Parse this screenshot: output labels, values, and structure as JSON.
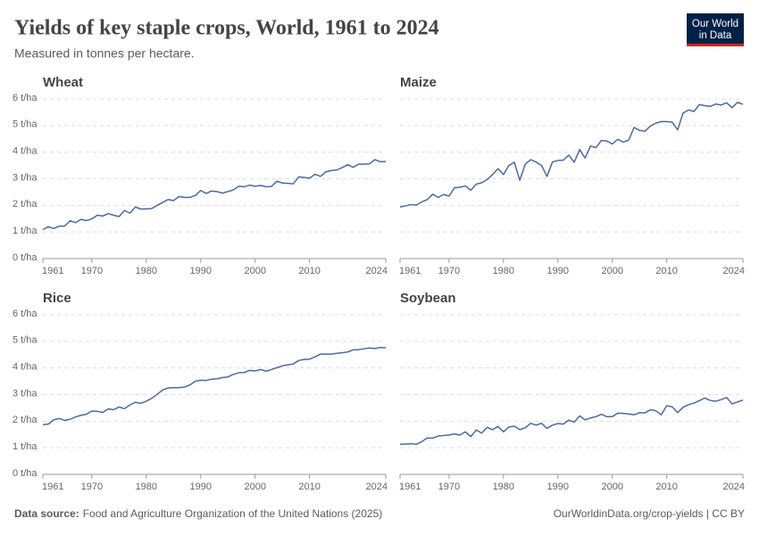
{
  "header": {
    "title": "Yields of key staple crops, World, 1961 to 2024",
    "subtitle": "Measured in tonnes per hectare."
  },
  "logo": {
    "line1": "Our World",
    "line2": "in Data"
  },
  "footer": {
    "source_label": "Data source:",
    "source": "Food and Agriculture Organization of the United Nations (2025)",
    "credit": "OurWorldinData.org/crop-yields | CC BY"
  },
  "chart_data": [
    {
      "type": "line",
      "title": "Wheat",
      "color": "#4c6a9c",
      "x": [
        1961,
        1962,
        1963,
        1964,
        1965,
        1966,
        1967,
        1968,
        1969,
        1970,
        1971,
        1972,
        1973,
        1974,
        1975,
        1976,
        1977,
        1978,
        1979,
        1980,
        1981,
        1982,
        1983,
        1984,
        1985,
        1986,
        1987,
        1988,
        1989,
        1990,
        1991,
        1992,
        1993,
        1994,
        1995,
        1996,
        1997,
        1998,
        1999,
        2000,
        2001,
        2002,
        2003,
        2004,
        2005,
        2006,
        2007,
        2008,
        2009,
        2010,
        2011,
        2012,
        2013,
        2014,
        2015,
        2016,
        2017,
        2018,
        2019,
        2020,
        2021,
        2022,
        2023,
        2024
      ],
      "values": [
        1.09,
        1.2,
        1.13,
        1.22,
        1.22,
        1.42,
        1.35,
        1.47,
        1.43,
        1.49,
        1.63,
        1.6,
        1.69,
        1.63,
        1.58,
        1.81,
        1.71,
        1.94,
        1.86,
        1.87,
        1.88,
        2.0,
        2.11,
        2.22,
        2.18,
        2.33,
        2.3,
        2.3,
        2.37,
        2.56,
        2.45,
        2.54,
        2.52,
        2.46,
        2.52,
        2.58,
        2.72,
        2.7,
        2.76,
        2.72,
        2.75,
        2.7,
        2.71,
        2.91,
        2.84,
        2.83,
        2.81,
        3.07,
        3.05,
        3.02,
        3.17,
        3.09,
        3.26,
        3.31,
        3.33,
        3.42,
        3.53,
        3.43,
        3.55,
        3.55,
        3.56,
        3.72,
        3.64,
        3.65
      ],
      "xlim": [
        1961,
        2024
      ],
      "xticks": [
        1961,
        1970,
        1980,
        1990,
        2000,
        2010,
        2024
      ],
      "ylim": [
        0,
        6
      ],
      "yticks": [
        {
          "value": 0,
          "label": "0 t/ha"
        },
        {
          "value": 1,
          "label": "1 t/ha"
        },
        {
          "value": 2,
          "label": "2 t/ha"
        },
        {
          "value": 3,
          "label": "3 t/ha"
        },
        {
          "value": 4,
          "label": "4 t/ha"
        },
        {
          "value": 5,
          "label": "5 t/ha"
        },
        {
          "value": 6,
          "label": "6 t/ha"
        }
      ]
    },
    {
      "type": "line",
      "title": "Maize",
      "color": "#4c6a9c",
      "x": [
        1961,
        1962,
        1963,
        1964,
        1965,
        1966,
        1967,
        1968,
        1969,
        1970,
        1971,
        1972,
        1973,
        1974,
        1975,
        1976,
        1977,
        1978,
        1979,
        1980,
        1981,
        1982,
        1983,
        1984,
        1985,
        1986,
        1987,
        1988,
        1989,
        1990,
        1991,
        1992,
        1993,
        1994,
        1995,
        1996,
        1997,
        1998,
        1999,
        2000,
        2001,
        2002,
        2003,
        2004,
        2005,
        2006,
        2007,
        2008,
        2009,
        2010,
        2011,
        2012,
        2013,
        2014,
        2015,
        2016,
        2017,
        2018,
        2019,
        2020,
        2021,
        2022,
        2023,
        2024
      ],
      "values": [
        1.94,
        1.98,
        2.03,
        2.01,
        2.13,
        2.22,
        2.42,
        2.3,
        2.41,
        2.35,
        2.66,
        2.68,
        2.73,
        2.57,
        2.8,
        2.85,
        2.97,
        3.16,
        3.38,
        3.16,
        3.5,
        3.62,
        2.94,
        3.55,
        3.72,
        3.63,
        3.5,
        3.09,
        3.63,
        3.69,
        3.7,
        3.89,
        3.62,
        4.1,
        3.78,
        4.23,
        4.17,
        4.44,
        4.42,
        4.31,
        4.48,
        4.38,
        4.45,
        4.93,
        4.82,
        4.79,
        4.98,
        5.09,
        5.15,
        5.15,
        5.13,
        4.84,
        5.47,
        5.59,
        5.53,
        5.79,
        5.75,
        5.72,
        5.81,
        5.77,
        5.86,
        5.67,
        5.87,
        5.8
      ],
      "xlim": [
        1961,
        2024
      ],
      "xticks": [
        1961,
        1970,
        1980,
        1990,
        2000,
        2010,
        2024
      ],
      "ylim": [
        0,
        6
      ],
      "yticks": [
        0,
        1,
        2,
        3,
        4,
        5,
        6
      ]
    },
    {
      "type": "line",
      "title": "Rice",
      "color": "#4c6a9c",
      "x": [
        1961,
        1962,
        1963,
        1964,
        1965,
        1966,
        1967,
        1968,
        1969,
        1970,
        1971,
        1972,
        1973,
        1974,
        1975,
        1976,
        1977,
        1978,
        1979,
        1980,
        1981,
        1982,
        1983,
        1984,
        1985,
        1986,
        1987,
        1988,
        1989,
        1990,
        1991,
        1992,
        1993,
        1994,
        1995,
        1996,
        1997,
        1998,
        1999,
        2000,
        2001,
        2002,
        2003,
        2004,
        2005,
        2006,
        2007,
        2008,
        2009,
        2010,
        2011,
        2012,
        2013,
        2014,
        2015,
        2016,
        2017,
        2018,
        2019,
        2020,
        2021,
        2022,
        2023,
        2024
      ],
      "values": [
        1.87,
        1.89,
        2.05,
        2.1,
        2.03,
        2.07,
        2.16,
        2.22,
        2.26,
        2.38,
        2.37,
        2.33,
        2.46,
        2.43,
        2.53,
        2.47,
        2.61,
        2.71,
        2.67,
        2.75,
        2.86,
        3.01,
        3.17,
        3.25,
        3.26,
        3.26,
        3.28,
        3.36,
        3.5,
        3.54,
        3.53,
        3.58,
        3.59,
        3.64,
        3.66,
        3.76,
        3.82,
        3.83,
        3.91,
        3.89,
        3.94,
        3.88,
        3.94,
        4.01,
        4.08,
        4.12,
        4.15,
        4.28,
        4.32,
        4.33,
        4.42,
        4.52,
        4.52,
        4.52,
        4.55,
        4.57,
        4.6,
        4.68,
        4.69,
        4.72,
        4.75,
        4.73,
        4.77,
        4.76
      ],
      "xlim": [
        1961,
        2024
      ],
      "xticks": [
        1961,
        1970,
        1980,
        1990,
        2000,
        2010,
        2024
      ],
      "ylim": [
        0,
        6
      ],
      "yticks": [
        {
          "value": 0,
          "label": "0 t/ha"
        },
        {
          "value": 1,
          "label": "1 t/ha"
        },
        {
          "value": 2,
          "label": "2 t/ha"
        },
        {
          "value": 3,
          "label": "3 t/ha"
        },
        {
          "value": 4,
          "label": "4 t/ha"
        },
        {
          "value": 5,
          "label": "5 t/ha"
        },
        {
          "value": 6,
          "label": "6 t/ha"
        }
      ]
    },
    {
      "type": "line",
      "title": "Soybean",
      "color": "#4c6a9c",
      "x": [
        1961,
        1962,
        1963,
        1964,
        1965,
        1966,
        1967,
        1968,
        1969,
        1970,
        1971,
        1972,
        1973,
        1974,
        1975,
        1976,
        1977,
        1978,
        1979,
        1980,
        1981,
        1982,
        1983,
        1984,
        1985,
        1986,
        1987,
        1988,
        1989,
        1990,
        1991,
        1992,
        1993,
        1994,
        1995,
        1996,
        1997,
        1998,
        1999,
        2000,
        2001,
        2002,
        2003,
        2004,
        2005,
        2006,
        2007,
        2008,
        2009,
        2010,
        2011,
        2012,
        2013,
        2014,
        2015,
        2016,
        2017,
        2018,
        2019,
        2020,
        2021,
        2022,
        2023,
        2024
      ],
      "values": [
        1.13,
        1.14,
        1.15,
        1.13,
        1.23,
        1.37,
        1.36,
        1.44,
        1.46,
        1.48,
        1.52,
        1.48,
        1.6,
        1.42,
        1.67,
        1.55,
        1.77,
        1.68,
        1.8,
        1.6,
        1.78,
        1.81,
        1.68,
        1.75,
        1.92,
        1.85,
        1.92,
        1.73,
        1.85,
        1.91,
        1.89,
        2.04,
        1.96,
        2.2,
        2.05,
        2.12,
        2.17,
        2.26,
        2.17,
        2.17,
        2.3,
        2.29,
        2.27,
        2.24,
        2.32,
        2.31,
        2.43,
        2.39,
        2.24,
        2.58,
        2.54,
        2.32,
        2.52,
        2.62,
        2.68,
        2.77,
        2.87,
        2.78,
        2.75,
        2.81,
        2.89,
        2.65,
        2.72,
        2.79
      ],
      "xlim": [
        1961,
        2024
      ],
      "xticks": [
        1961,
        1970,
        1980,
        1990,
        2000,
        2010,
        2024
      ],
      "ylim": [
        0,
        6
      ],
      "yticks": [
        0,
        1,
        2,
        3,
        4,
        5,
        6
      ]
    }
  ]
}
